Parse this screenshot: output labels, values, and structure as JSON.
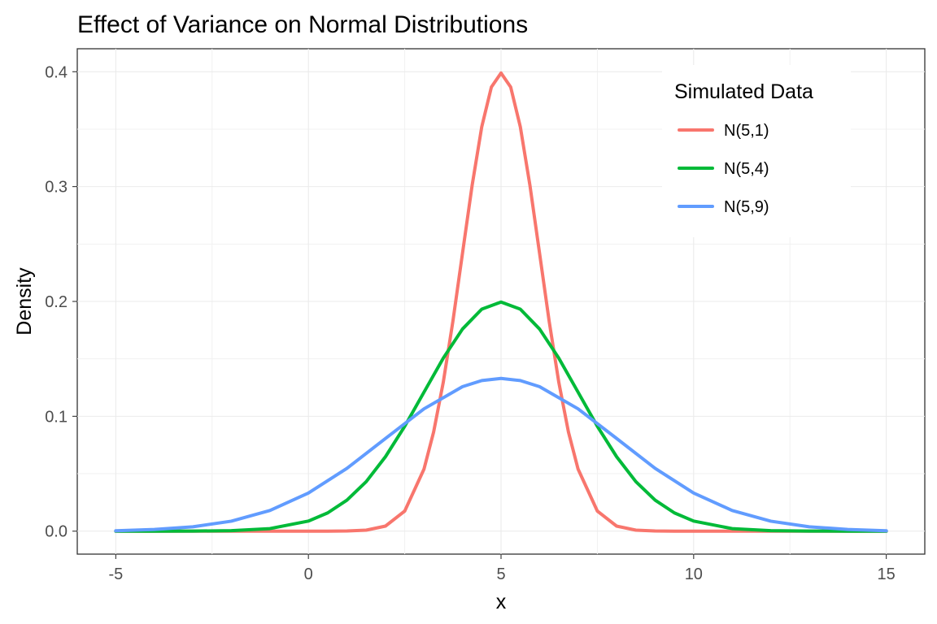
{
  "chart_data": {
    "type": "line",
    "title": "Effect of Variance on Normal Distributions",
    "xlabel": "x",
    "ylabel": "Density",
    "xlim": [
      -6,
      16
    ],
    "ylim": [
      -0.02,
      0.42
    ],
    "x_ticks": [
      -5,
      0,
      5,
      10,
      15
    ],
    "x_tick_labels": [
      "-5",
      "0",
      "5",
      "10",
      "15"
    ],
    "y_ticks": [
      0.0,
      0.1,
      0.2,
      0.3,
      0.4
    ],
    "y_tick_labels": [
      "0.0",
      "0.1",
      "0.2",
      "0.3",
      "0.4"
    ],
    "grid": true,
    "legend": {
      "title": "Simulated Data",
      "position": "top-right"
    },
    "series": [
      {
        "name": "N(5,1)",
        "color": "#F8766D",
        "x": [
          -5,
          -4,
          -3,
          -2,
          -1,
          0,
          0.5,
          1,
          1.5,
          2,
          2.5,
          3,
          3.25,
          3.5,
          3.75,
          4,
          4.25,
          4.5,
          4.75,
          5,
          5.25,
          5.5,
          5.75,
          6,
          6.25,
          6.5,
          6.75,
          7,
          7.5,
          8,
          8.5,
          9,
          9.5,
          10,
          11,
          12,
          13,
          14,
          15
        ],
        "y": [
          0.0,
          0.0,
          0.0,
          0.0,
          0.0,
          0.0,
          2e-05,
          0.00013,
          0.00087,
          0.0044,
          0.0175,
          0.054,
          0.0863,
          0.1295,
          0.1826,
          0.242,
          0.3011,
          0.3521,
          0.3867,
          0.3989,
          0.3867,
          0.3521,
          0.3011,
          0.242,
          0.1826,
          0.1295,
          0.0863,
          0.054,
          0.0175,
          0.0044,
          0.00087,
          0.00013,
          2e-05,
          0.0,
          0.0,
          0.0,
          0.0,
          0.0,
          0.0
        ]
      },
      {
        "name": "N(5,4)",
        "color": "#00BA38",
        "x": [
          -5,
          -4,
          -3,
          -2,
          -1,
          0,
          0.5,
          1,
          1.5,
          2,
          2.5,
          3,
          3.5,
          4,
          4.5,
          5,
          5.5,
          6,
          6.5,
          7,
          7.5,
          8,
          8.5,
          9,
          9.5,
          10,
          11,
          12,
          13,
          14,
          15
        ],
        "y": [
          0.0,
          2e-05,
          7e-05,
          0.00044,
          0.00222,
          0.00876,
          0.0159,
          0.027,
          0.0431,
          0.0648,
          0.0913,
          0.121,
          0.1506,
          0.176,
          0.1933,
          0.1995,
          0.1933,
          0.176,
          0.1506,
          0.121,
          0.0913,
          0.0648,
          0.0431,
          0.027,
          0.0159,
          0.00876,
          0.00222,
          0.00044,
          7e-05,
          2e-05,
          0.0
        ]
      },
      {
        "name": "N(5,9)",
        "color": "#619CFF",
        "x": [
          -5,
          -4,
          -3,
          -2,
          -1,
          0,
          1,
          2,
          3,
          4,
          4.5,
          5,
          5.5,
          6,
          7,
          8,
          9,
          10,
          11,
          12,
          13,
          14,
          15
        ],
        "y": [
          0.0003,
          0.0015,
          0.0038,
          0.0087,
          0.018,
          0.0332,
          0.0547,
          0.0807,
          0.1065,
          0.1258,
          0.1311,
          0.133,
          0.1311,
          0.1258,
          0.1065,
          0.0807,
          0.0547,
          0.0332,
          0.018,
          0.0087,
          0.0038,
          0.0015,
          0.0003
        ]
      }
    ]
  }
}
